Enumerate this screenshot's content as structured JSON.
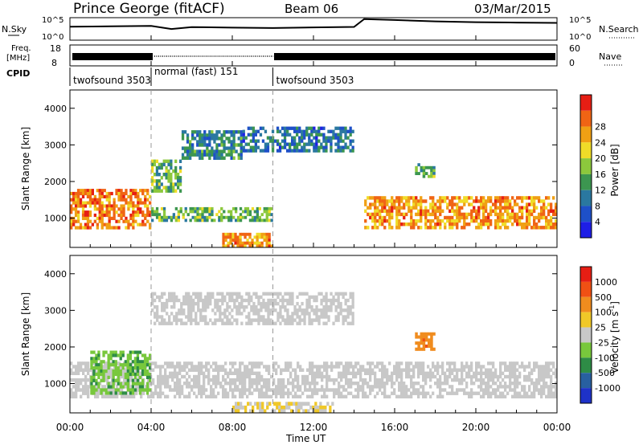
{
  "header": {
    "title": "Prince George (fitACF)",
    "beam": "Beam 06",
    "date": "03/Mar/2015"
  },
  "status_panel": {
    "nsky_label": "N.Sky",
    "nsky_ticks": [
      "10^5",
      "10^0"
    ],
    "nsearch_label": "N.Search",
    "nsearch_ticks": [
      "10^5",
      "10^0"
    ],
    "freq_label": "Freq.",
    "freq_unit": "[MHz]",
    "freq_ticks": [
      "18",
      "8"
    ],
    "nave_label": "Nave",
    "nave_ticks": [
      "60",
      "0"
    ],
    "cpid_label": "CPID"
  },
  "cpid_segments": [
    {
      "label": "twofsound 3503",
      "start_hour": 0,
      "end_hour": 4
    },
    {
      "label": "normal (fast) 151",
      "start_hour": 4,
      "end_hour": 10
    },
    {
      "label": "twofsound 3503",
      "start_hour": 10,
      "end_hour": 24
    }
  ],
  "time_axis": {
    "label": "Time UT",
    "ticks": [
      "00:00",
      "04:00",
      "08:00",
      "12:00",
      "16:00",
      "20:00",
      "00:00"
    ]
  },
  "range_axis": {
    "label": "Slant Range [km]",
    "ticks": [
      "1000",
      "2000",
      "3000",
      "4000"
    ]
  },
  "power_colorbar": {
    "label": "Power [dB]",
    "ticks": [
      "4",
      "8",
      "12",
      "16",
      "20",
      "24",
      "28"
    ],
    "colors": [
      "#1e1ee6",
      "#1e50c8",
      "#2a78a0",
      "#3c9650",
      "#8cc83c",
      "#f0dc28",
      "#f0a014",
      "#f06414",
      "#e61e14"
    ]
  },
  "velocity_colorbar": {
    "label": "Velocity [m s",
    "label_sup": "-1",
    "label_end": "]",
    "ticks": [
      "1000",
      "500",
      "100",
      "25",
      "-25",
      "-100",
      "-500",
      "-1000"
    ],
    "colors": [
      "#1e32c8",
      "#2860a0",
      "#2e8c46",
      "#78c83c",
      "#c8c8c8",
      "#f0c828",
      "#f08c1e",
      "#f05014",
      "#e61e14"
    ]
  },
  "chart_data": [
    {
      "type": "heatmap",
      "title": "Power",
      "xlabel": "Time UT",
      "ylabel": "Slant Range [km]",
      "xlim": [
        0,
        24
      ],
      "ylim": [
        200,
        4500
      ],
      "colorbar_label": "Power [dB]",
      "colorbar_range": [
        0,
        30
      ],
      "regions": [
        {
          "t": [
            0,
            4
          ],
          "r": [
            700,
            1800
          ],
          "value": 25
        },
        {
          "t": [
            4,
            5.5
          ],
          "r": [
            1700,
            2600
          ],
          "value": 14
        },
        {
          "t": [
            5.5,
            8.5
          ],
          "r": [
            2600,
            3400
          ],
          "value": 10
        },
        {
          "t": [
            8.5,
            14
          ],
          "r": [
            2800,
            3500
          ],
          "value": 8
        },
        {
          "t": [
            4,
            10
          ],
          "r": [
            900,
            1300
          ],
          "value": 14
        },
        {
          "t": [
            7.5,
            10
          ],
          "r": [
            200,
            600
          ],
          "value": 24
        },
        {
          "t": [
            14.5,
            24
          ],
          "r": [
            700,
            1600
          ],
          "value": 24
        },
        {
          "t": [
            17,
            18
          ],
          "r": [
            2100,
            2500
          ],
          "value": 14
        }
      ]
    },
    {
      "type": "heatmap",
      "title": "Velocity",
      "xlabel": "Time UT",
      "ylabel": "Slant Range [km]",
      "xlim": [
        0,
        24
      ],
      "ylim": [
        200,
        4500
      ],
      "colorbar_label": "Velocity [m s-1]",
      "colorbar_range": [
        -1000,
        1000
      ],
      "regions": [
        {
          "t": [
            0,
            24
          ],
          "r": [
            600,
            1600
          ],
          "value": 0
        },
        {
          "t": [
            1,
            4
          ],
          "r": [
            700,
            1900
          ],
          "value": -300
        },
        {
          "t": [
            4,
            14
          ],
          "r": [
            2600,
            3500
          ],
          "value": 0
        },
        {
          "t": [
            8,
            13
          ],
          "r": [
            200,
            500
          ],
          "value": 100
        },
        {
          "t": [
            17,
            18
          ],
          "r": [
            1900,
            2400
          ],
          "value": 500
        }
      ]
    },
    {
      "type": "line",
      "title": "N.Sky",
      "xlim": [
        0,
        24
      ],
      "x": [
        0,
        2,
        4,
        5,
        6,
        8,
        10,
        12,
        14,
        14.5,
        16,
        18,
        20,
        22,
        24
      ],
      "y": [
        1000,
        1200,
        1500,
        300,
        800,
        600,
        500,
        700,
        900,
        50000,
        30000,
        15000,
        10000,
        8000,
        7000
      ]
    }
  ]
}
